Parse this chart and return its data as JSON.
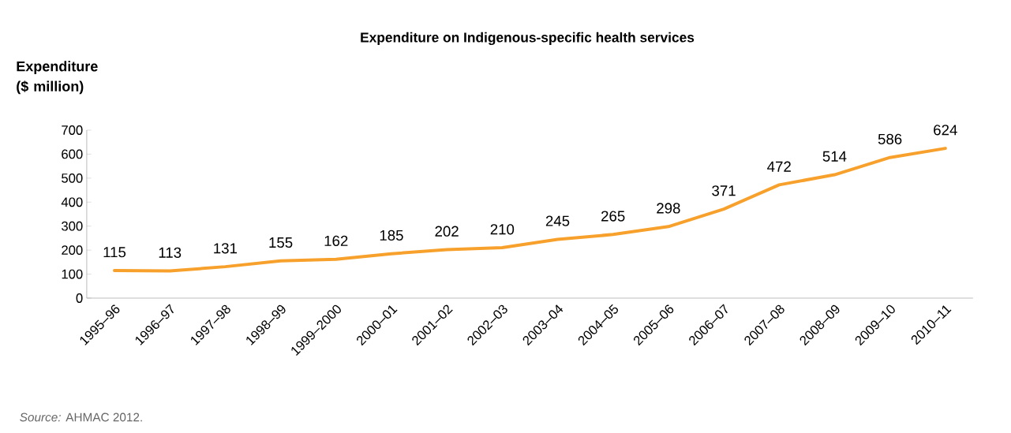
{
  "chart_data": {
    "type": "line",
    "title": "Expenditure on Indigenous-specific health services",
    "ylabel": "Expenditure ($ million)",
    "categories": [
      "1995–96",
      "1996–97",
      "1997–98",
      "1998–99",
      "1999–2000",
      "2000–01",
      "2001–02",
      "2002–03",
      "2003–04",
      "2004–05",
      "2005–06",
      "2006–07",
      "2007–08",
      "2008–09",
      "2009–10",
      "2010–11"
    ],
    "values": [
      115,
      113,
      131,
      155,
      162,
      185,
      202,
      210,
      245,
      265,
      298,
      371,
      472,
      514,
      586,
      624
    ],
    "color": "#f7a12c",
    "ylim": [
      0,
      700
    ],
    "yticks": [
      0,
      100,
      200,
      300,
      400,
      500,
      600,
      700
    ],
    "data_labels": true,
    "grid": false,
    "marker": "none",
    "line_style": "solid",
    "annotations": [
      "*Source:* AHMAC 2012."
    ]
  }
}
